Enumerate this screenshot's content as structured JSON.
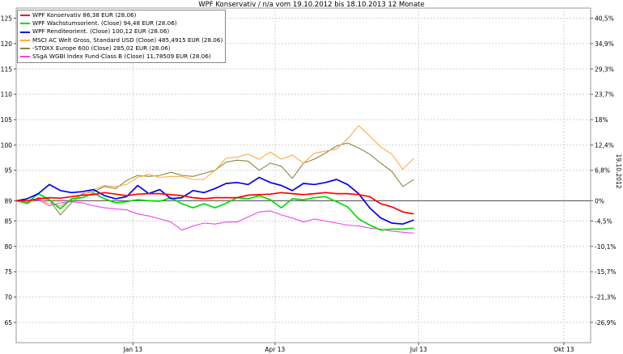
{
  "chart_data": {
    "type": "line",
    "title": "WPF Konservativ / n/a vom 19.10.2012 bis 18.10.2013 12 Monate",
    "x_labels": [
      "Jan 13",
      "Apr 13",
      "Jul 13",
      "Okt 13"
    ],
    "x_range": [
      "2012-10-19",
      "2013-10-18"
    ],
    "y_left_ticks": [
      "125",
      "120",
      "115",
      "110",
      "105",
      "100",
      "95",
      "89",
      "85",
      "80",
      "75",
      "70",
      "65"
    ],
    "y_right_ticks": [
      "40,5%",
      "34,9%",
      "29,3%",
      "23,7%",
      "18%",
      "12,4%",
      "6,8%",
      "0%",
      "-4,5%",
      "-10,1%",
      "-15,7%",
      "-21,3%",
      "-26,9%"
    ],
    "y_right_label": "19.10.2012",
    "baseline": 89,
    "ylim": [
      61,
      127
    ],
    "grid": true,
    "legend_position": "top-left",
    "x": [
      "2012-10-19",
      "2012-10-26",
      "2012-11-02",
      "2012-11-09",
      "2012-11-16",
      "2012-11-23",
      "2012-11-30",
      "2012-12-07",
      "2012-12-14",
      "2012-12-21",
      "2012-12-28",
      "2013-01-04",
      "2013-01-11",
      "2013-01-18",
      "2013-01-25",
      "2013-02-01",
      "2013-02-08",
      "2013-02-15",
      "2013-02-22",
      "2013-03-01",
      "2013-03-08",
      "2013-03-15",
      "2013-03-22",
      "2013-03-29",
      "2013-04-05",
      "2013-04-12",
      "2013-04-19",
      "2013-04-26",
      "2013-05-03",
      "2013-05-10",
      "2013-05-17",
      "2013-05-24",
      "2013-05-31",
      "2013-06-07",
      "2013-06-14",
      "2013-06-21",
      "2013-06-28"
    ],
    "series": [
      {
        "name": "WPF Konservativ 86,38 EUR (28.06)",
        "color": "#ff0000",
        "values": [
          89.0,
          89.0,
          89.4,
          89.6,
          89.5,
          89.8,
          90.1,
          90.2,
          90.6,
          90.3,
          90.0,
          90.3,
          90.4,
          90.4,
          90.2,
          90.0,
          89.6,
          89.4,
          89.6,
          89.6,
          89.6,
          90.1,
          90.2,
          90.3,
          90.6,
          90.4,
          90.2,
          90.4,
          90.6,
          90.4,
          90.4,
          90.2,
          89.8,
          88.4,
          87.8,
          86.8,
          86.4
        ]
      },
      {
        "name": "WPF Wachstumsorient. (Close) 94,48 EUR (28.06)",
        "color": "#00dd00",
        "values": [
          89.0,
          88.6,
          90.4,
          89.2,
          87.4,
          89.4,
          89.6,
          90.5,
          89.4,
          88.6,
          88.8,
          89.2,
          89.0,
          88.9,
          89.6,
          88.4,
          87.6,
          88.4,
          87.6,
          88.5,
          89.6,
          89.4,
          90.0,
          89.2,
          87.6,
          89.4,
          89.2,
          89.6,
          89.8,
          88.8,
          87.8,
          85.4,
          84.2,
          83.2,
          83.4,
          83.4,
          83.6
        ]
      },
      {
        "name": "WPF Renditeorient. (Close) 100,12 EUR (28.06)",
        "color": "#0000ee",
        "values": [
          89.0,
          89.4,
          90.4,
          92.2,
          91.0,
          90.6,
          90.8,
          91.2,
          90.0,
          89.4,
          89.8,
          92.0,
          90.4,
          91.2,
          89.4,
          89.6,
          91.0,
          90.6,
          91.4,
          92.4,
          92.6,
          92.2,
          93.6,
          92.6,
          92.0,
          91.0,
          92.4,
          92.2,
          92.6,
          93.2,
          92.2,
          90.4,
          87.6,
          85.6,
          84.6,
          84.4,
          85.2
        ]
      },
      {
        "name": "MSCI AC Welt Gross, Standard USD (Close) 485,4915 EUR (28.06)",
        "color": "#ffaa44",
        "values": [
          89.0,
          88.6,
          89.4,
          88.4,
          88.0,
          89.2,
          90.2,
          91.2,
          92.0,
          91.8,
          92.2,
          93.6,
          94.2,
          93.6,
          93.8,
          93.8,
          93.2,
          93.2,
          95.0,
          97.4,
          97.6,
          98.2,
          97.2,
          98.6,
          97.2,
          98.0,
          96.4,
          98.4,
          98.8,
          99.2,
          101.2,
          103.8,
          101.8,
          99.6,
          98.2,
          95.2,
          97.4
        ]
      },
      {
        "name": "-STOXX Europe 600 (Close) 285,02 EUR (28.06)",
        "color": "#888844",
        "values": [
          89.0,
          88.4,
          89.6,
          89.2,
          86.2,
          88.6,
          90.4,
          90.8,
          91.8,
          91.4,
          93.0,
          94.0,
          93.8,
          94.0,
          94.6,
          94.0,
          93.8,
          94.4,
          95.0,
          96.6,
          97.0,
          96.8,
          95.0,
          96.4,
          95.8,
          93.4,
          96.4,
          97.2,
          98.4,
          99.8,
          100.4,
          99.4,
          98.2,
          96.4,
          94.8,
          91.8,
          93.2
        ]
      },
      {
        "name": "SSgA WGBI Index Fund-Class B (Close) 11,78509 EUR (28.06)",
        "color": "#ee44ee",
        "values": [
          89.0,
          89.0,
          89.2,
          88.0,
          88.6,
          88.8,
          88.6,
          88.0,
          87.6,
          87.4,
          87.2,
          86.4,
          86.0,
          85.4,
          84.8,
          83.2,
          84.0,
          84.6,
          84.4,
          84.8,
          84.8,
          85.8,
          86.8,
          87.0,
          86.2,
          85.6,
          84.8,
          85.4,
          85.0,
          84.6,
          84.2,
          84.0,
          83.6,
          83.4,
          83.0,
          82.8,
          82.6
        ]
      }
    ]
  }
}
